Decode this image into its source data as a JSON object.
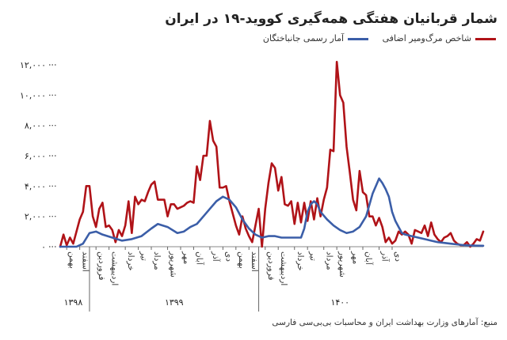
{
  "title": "شمار قربانیان هفتگی همه‌گیری کووید-۱۹ در ایران",
  "source": "منبع: آمارهای وزارت بهداشت ایران و محاسبات بی‌بی‌سی فارسی",
  "chart_data": {
    "type": "line",
    "title": "شمار قربانیان هفتگی همه‌گیری کووید-۱۹ در ایران",
    "ylim": [
      0,
      12000
    ],
    "yticks": [
      0,
      2000,
      4000,
      6000,
      8000,
      10000,
      12000
    ],
    "ytick_labels": [
      "۰",
      "۲,۰۰۰",
      "۴,۰۰۰",
      "۶,۰۰۰",
      "۸,۰۰۰",
      "۱۰,۰۰۰",
      "۱۲,۰۰۰"
    ],
    "x_range": [
      0,
      130
    ],
    "legend_position": "top-right",
    "grid": false,
    "months": [
      {
        "label": "بهمن",
        "x": 2
      },
      {
        "label": "اسفند",
        "x": 6
      },
      {
        "label": "فروردین",
        "x": 11
      },
      {
        "label": "اردیبهشت",
        "x": 15
      },
      {
        "label": "خرداد",
        "x": 20
      },
      {
        "label": "تیر",
        "x": 24
      },
      {
        "label": "مرداد",
        "x": 28
      },
      {
        "label": "شهریور",
        "x": 33
      },
      {
        "label": "مهر",
        "x": 37
      },
      {
        "label": "آبان",
        "x": 41
      },
      {
        "label": "آذر",
        "x": 46
      },
      {
        "label": "دی",
        "x": 50
      },
      {
        "label": "بهمن",
        "x": 54
      },
      {
        "label": "اسفند",
        "x": 58
      },
      {
        "label": "فروردین",
        "x": 63
      },
      {
        "label": "اردیبهشت",
        "x": 67
      },
      {
        "label": "خرداد",
        "x": 72
      },
      {
        "label": "تیر",
        "x": 76
      },
      {
        "label": "مرداد",
        "x": 81
      },
      {
        "label": "شهریور",
        "x": 85
      },
      {
        "label": "مهر",
        "x": 89
      },
      {
        "label": "آبان",
        "x": 93
      },
      {
        "label": "آذر",
        "x": 98
      },
      {
        "label": "دی",
        "x": 102
      }
    ],
    "years": [
      {
        "label": "۱۳۹۸",
        "x": 4
      },
      {
        "label": "۱۳۹۹",
        "x": 35
      },
      {
        "label": "۱۴۰۰",
        "x": 86
      }
    ],
    "year_boundaries": [
      9,
      61
    ],
    "series": [
      {
        "name": "شاخص مرگ‌ومیر اضافی",
        "color": "#b01318",
        "points": [
          [
            0,
            0
          ],
          [
            1,
            800
          ],
          [
            2,
            100
          ],
          [
            3,
            600
          ],
          [
            4,
            200
          ],
          [
            5,
            1000
          ],
          [
            6,
            1800
          ],
          [
            7,
            2300
          ],
          [
            8,
            4000
          ],
          [
            9,
            4000
          ],
          [
            10,
            2000
          ],
          [
            11,
            1300
          ],
          [
            12,
            2500
          ],
          [
            13,
            2900
          ],
          [
            14,
            1300
          ],
          [
            15,
            1400
          ],
          [
            16,
            1100
          ],
          [
            17,
            300
          ],
          [
            18,
            1100
          ],
          [
            19,
            700
          ],
          [
            20,
            1400
          ],
          [
            21,
            3000
          ],
          [
            22,
            900
          ],
          [
            23,
            3300
          ],
          [
            24,
            2800
          ],
          [
            25,
            3100
          ],
          [
            26,
            3000
          ],
          [
            27,
            3600
          ],
          [
            28,
            4100
          ],
          [
            29,
            4300
          ],
          [
            30,
            3100
          ],
          [
            31,
            3100
          ],
          [
            32,
            3100
          ],
          [
            33,
            2000
          ],
          [
            34,
            2800
          ],
          [
            35,
            2800
          ],
          [
            36,
            2500
          ],
          [
            37,
            2600
          ],
          [
            38,
            2700
          ],
          [
            39,
            2900
          ],
          [
            40,
            3000
          ],
          [
            41,
            2900
          ],
          [
            42,
            5300
          ],
          [
            43,
            4400
          ],
          [
            44,
            6000
          ],
          [
            45,
            6000
          ],
          [
            46,
            8300
          ],
          [
            47,
            7000
          ],
          [
            48,
            6600
          ],
          [
            49,
            3900
          ],
          [
            50,
            3900
          ],
          [
            51,
            4000
          ],
          [
            52,
            3000
          ],
          [
            53,
            2200
          ],
          [
            54,
            1400
          ],
          [
            55,
            800
          ],
          [
            56,
            2000
          ],
          [
            57,
            1200
          ],
          [
            58,
            700
          ],
          [
            59,
            300
          ],
          [
            60,
            1400
          ],
          [
            61,
            2500
          ],
          [
            62,
            0
          ],
          [
            63,
            2500
          ],
          [
            64,
            4200
          ],
          [
            65,
            5500
          ],
          [
            66,
            5200
          ],
          [
            67,
            3700
          ],
          [
            68,
            4600
          ],
          [
            69,
            2800
          ],
          [
            70,
            2700
          ],
          [
            71,
            3000
          ],
          [
            72,
            1500
          ],
          [
            73,
            2900
          ],
          [
            74,
            1600
          ],
          [
            75,
            2900
          ],
          [
            76,
            1700
          ],
          [
            77,
            3000
          ],
          [
            78,
            1800
          ],
          [
            79,
            3200
          ],
          [
            80,
            2000
          ],
          [
            81,
            3100
          ],
          [
            82,
            3900
          ],
          [
            83,
            6400
          ],
          [
            84,
            6300
          ],
          [
            85,
            12200
          ],
          [
            86,
            10000
          ],
          [
            87,
            9500
          ],
          [
            88,
            6600
          ],
          [
            89,
            4900
          ],
          [
            90,
            3100
          ],
          [
            91,
            2400
          ],
          [
            92,
            5000
          ],
          [
            93,
            3600
          ],
          [
            94,
            3400
          ],
          [
            95,
            2000
          ],
          [
            96,
            2000
          ],
          [
            97,
            1400
          ],
          [
            98,
            1900
          ],
          [
            99,
            1300
          ],
          [
            100,
            300
          ],
          [
            101,
            600
          ],
          [
            102,
            200
          ],
          [
            103,
            400
          ],
          [
            104,
            1000
          ],
          [
            105,
            800
          ],
          [
            106,
            1000
          ],
          [
            107,
            800
          ],
          [
            108,
            200
          ],
          [
            109,
            1100
          ],
          [
            110,
            1000
          ],
          [
            111,
            900
          ],
          [
            112,
            1400
          ],
          [
            113,
            700
          ],
          [
            114,
            1600
          ],
          [
            115,
            800
          ],
          [
            116,
            500
          ],
          [
            117,
            300
          ],
          [
            118,
            600
          ],
          [
            119,
            700
          ],
          [
            120,
            900
          ],
          [
            121,
            400
          ],
          [
            122,
            200
          ],
          [
            123,
            100
          ],
          [
            124,
            100
          ],
          [
            125,
            300
          ],
          [
            126,
            0
          ],
          [
            127,
            200
          ],
          [
            128,
            500
          ],
          [
            129,
            400
          ],
          [
            130,
            1000
          ]
        ]
      },
      {
        "name": "آمار رسمی جانباختگان",
        "color": "#3b5ea8",
        "points": [
          [
            0,
            0
          ],
          [
            5,
            0
          ],
          [
            7,
            200
          ],
          [
            9,
            900
          ],
          [
            11,
            1000
          ],
          [
            13,
            800
          ],
          [
            16,
            600
          ],
          [
            19,
            400
          ],
          [
            22,
            500
          ],
          [
            25,
            700
          ],
          [
            28,
            1200
          ],
          [
            30,
            1500
          ],
          [
            33,
            1300
          ],
          [
            36,
            900
          ],
          [
            38,
            1000
          ],
          [
            40,
            1300
          ],
          [
            42,
            1500
          ],
          [
            44,
            2000
          ],
          [
            46,
            2500
          ],
          [
            48,
            3000
          ],
          [
            50,
            3300
          ],
          [
            52,
            3100
          ],
          [
            54,
            2600
          ],
          [
            56,
            1800
          ],
          [
            58,
            1200
          ],
          [
            60,
            800
          ],
          [
            62,
            600
          ],
          [
            64,
            700
          ],
          [
            66,
            700
          ],
          [
            68,
            600
          ],
          [
            70,
            600
          ],
          [
            72,
            600
          ],
          [
            74,
            600
          ],
          [
            75,
            1200
          ],
          [
            76,
            2300
          ],
          [
            77,
            2800
          ],
          [
            78,
            3000
          ],
          [
            79,
            2800
          ],
          [
            80,
            2300
          ],
          [
            82,
            1800
          ],
          [
            84,
            1400
          ],
          [
            86,
            1100
          ],
          [
            88,
            900
          ],
          [
            90,
            1000
          ],
          [
            92,
            1300
          ],
          [
            94,
            2000
          ],
          [
            96,
            3500
          ],
          [
            97,
            4000
          ],
          [
            98,
            4500
          ],
          [
            99,
            4200
          ],
          [
            100,
            3800
          ],
          [
            101,
            3300
          ],
          [
            102,
            2300
          ],
          [
            103,
            1700
          ],
          [
            104,
            1300
          ],
          [
            105,
            900
          ],
          [
            106,
            800
          ],
          [
            108,
            700
          ],
          [
            110,
            600
          ],
          [
            112,
            500
          ],
          [
            114,
            400
          ],
          [
            116,
            300
          ],
          [
            118,
            250
          ],
          [
            120,
            200
          ],
          [
            122,
            150
          ],
          [
            124,
            100
          ],
          [
            126,
            80
          ],
          [
            128,
            70
          ],
          [
            130,
            60
          ]
        ]
      }
    ]
  }
}
